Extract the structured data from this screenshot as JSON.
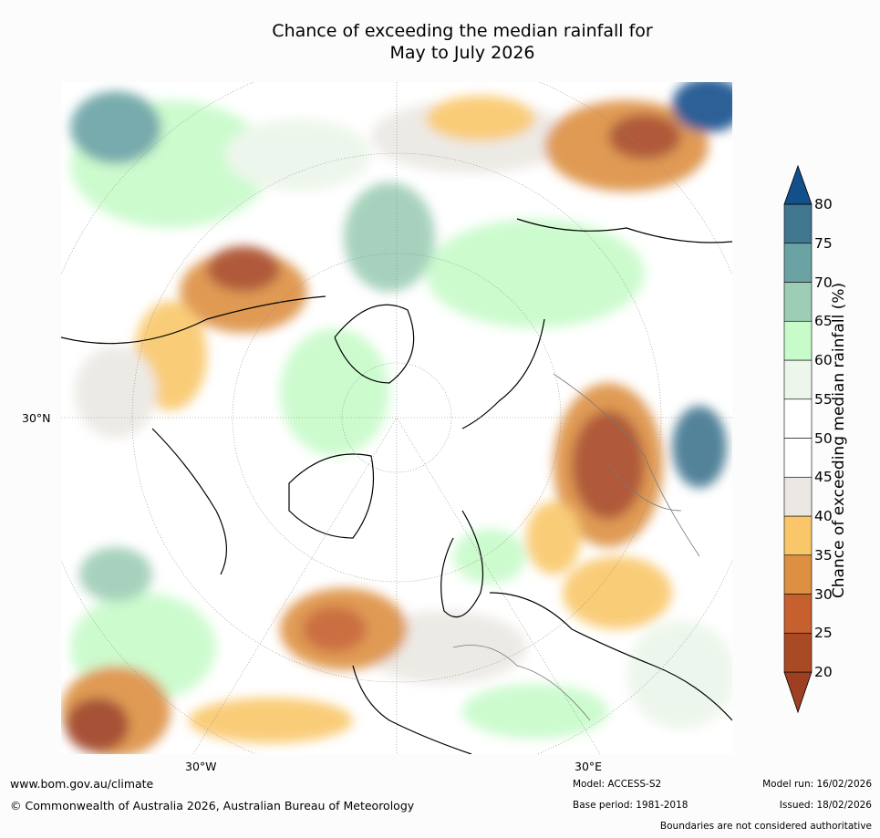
{
  "title_line1": "Chance of exceeding the median rainfall for",
  "title_line2": "May to July 2026",
  "labels": {
    "lat_30n": "30°N",
    "lon_30w": "30°W",
    "lon_30e": "30°E"
  },
  "colorbar": {
    "title": "Chance of exceeding median rainfall (%)",
    "ticks": [
      "20",
      "25",
      "30",
      "35",
      "40",
      "45",
      "50",
      "55",
      "60",
      "65",
      "70",
      "75",
      "80"
    ],
    "colors": [
      "#9e3f22",
      "#a94a25",
      "#c6612f",
      "#dd9042",
      "#f9c76a",
      "#ebe8e3",
      "#ffffff",
      "#ffffff",
      "#ecf6ea",
      "#c7fbc9",
      "#9ecdb6",
      "#6ba3a5",
      "#41768f",
      "#12508c"
    ]
  },
  "footer": {
    "url": "www.bom.gov.au/climate",
    "copyright": "© Commonwealth of Australia 2026, Australian Bureau of Meteorology",
    "model": "Model: ACCESS-S2",
    "base_period": "Base period: 1981-2018",
    "model_run": "Model run: 16/02/2026",
    "issued": "Issued: 18/02/2026",
    "disclaimer": "Boundaries are not considered authoritative"
  }
}
